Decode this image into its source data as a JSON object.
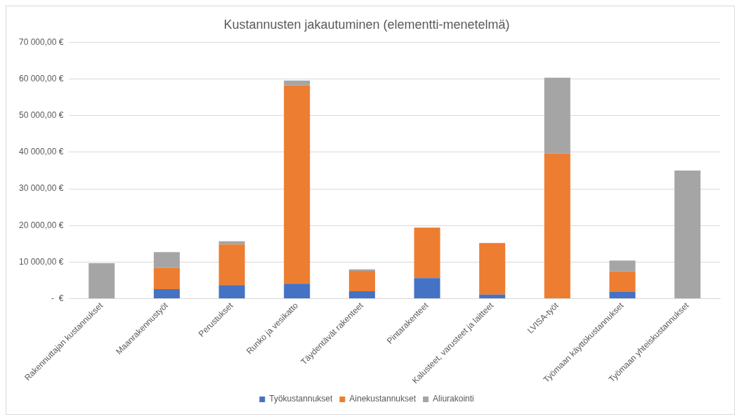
{
  "chart_data": {
    "type": "bar",
    "title": "Kustannusten jakautuminen (elementti-menetelmä)",
    "stacked": true,
    "categories": [
      "Rakennuttajan kustannukset",
      "Maanrakennustyöt",
      "Perustukset",
      "Runko ja vesikatto",
      "Täydentävät rakenteet",
      "Pintarakenteet",
      "Kalusteet, varusteet ja laitteet",
      "LVISA-työt",
      "Työmaan käyttökustannukset",
      "Työmaan yhteiskustannukset"
    ],
    "series": [
      {
        "name": "Työkustannukset",
        "color": "#4472c4",
        "values": [
          0,
          2600,
          3700,
          4100,
          2000,
          5600,
          1100,
          0,
          1800,
          0
        ]
      },
      {
        "name": "Ainekustannukset",
        "color": "#ed7d31",
        "values": [
          0,
          5800,
          11100,
          54200,
          5600,
          13800,
          14100,
          39700,
          5700,
          0
        ]
      },
      {
        "name": "Aliurakointi",
        "color": "#a5a5a5",
        "values": [
          9700,
          4300,
          900,
          1300,
          400,
          0,
          0,
          20700,
          2900,
          35000
        ]
      }
    ],
    "ylim": [
      0,
      70000
    ],
    "yticks": [
      {
        "value": 0,
        "label": " -  €"
      },
      {
        "value": 10000,
        "label": "10 000,00 €"
      },
      {
        "value": 20000,
        "label": "20 000,00 €"
      },
      {
        "value": 30000,
        "label": "30 000,00 €"
      },
      {
        "value": 40000,
        "label": "40 000,00 €"
      },
      {
        "value": 50000,
        "label": "50 000,00 €"
      },
      {
        "value": 60000,
        "label": "60 000,00 €"
      },
      {
        "value": 70000,
        "label": "70 000,00 €"
      }
    ],
    "grid": "y",
    "legend": "bottom"
  }
}
